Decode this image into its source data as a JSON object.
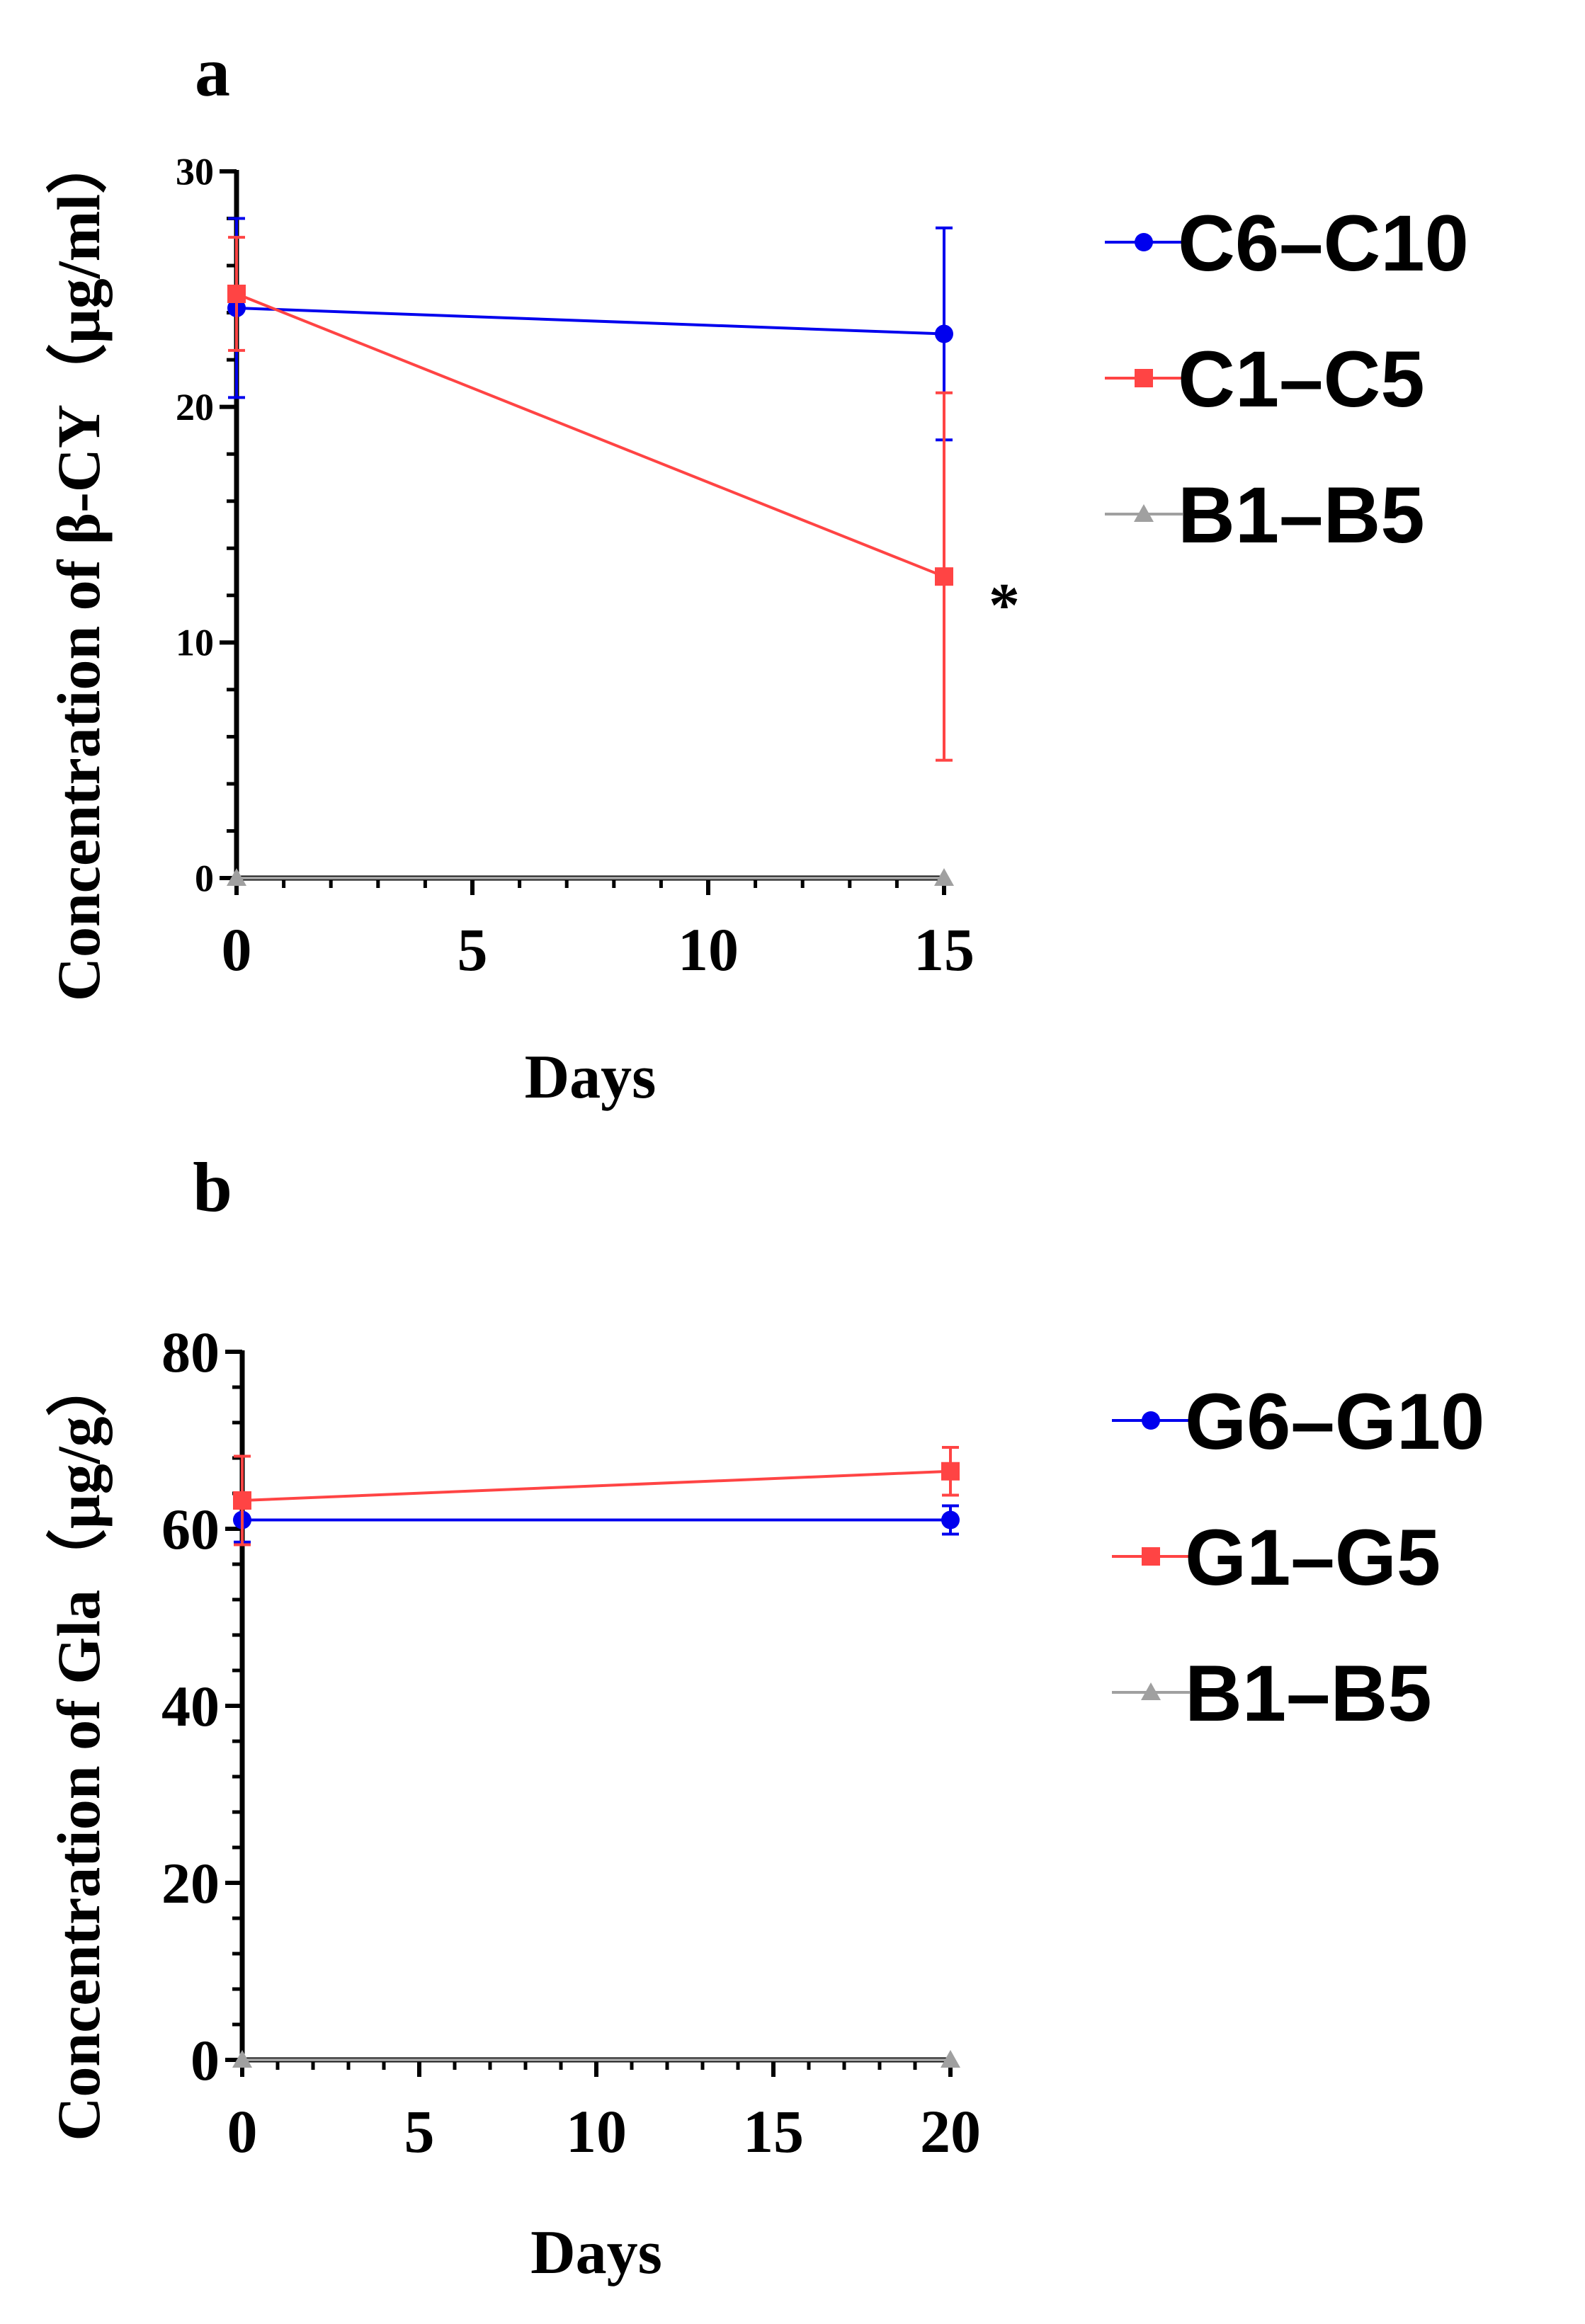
{
  "chart_data": [
    {
      "panel": "a",
      "type": "line",
      "xlabel": "Days",
      "ylabel": "Concentration of β-CY（μg/ml）",
      "xlim": [
        0,
        15
      ],
      "ylim": [
        0,
        30
      ],
      "xticks": [
        0,
        5,
        10,
        15
      ],
      "yticks": [
        0,
        10,
        20,
        30
      ],
      "x": [
        0,
        15
      ],
      "series": [
        {
          "name": "C6–C10",
          "color": "#0000ee",
          "marker": "circle",
          "values": [
            24.2,
            23.1
          ],
          "errors": [
            3.8,
            4.5
          ]
        },
        {
          "name": "C1–C5",
          "color": "#ff4444",
          "marker": "square",
          "values": [
            24.8,
            12.8
          ],
          "errors": [
            2.4,
            7.8
          ]
        },
        {
          "name": "B1–B5",
          "color": "#a0a0a0",
          "marker": "triangle",
          "values": [
            0,
            0
          ],
          "errors": [
            0,
            0
          ]
        }
      ],
      "annotation": {
        "text": "*",
        "x": 15,
        "y": 12.8
      }
    },
    {
      "panel": "b",
      "type": "line",
      "xlabel": "Days",
      "ylabel": "Concentration of Gla（μg/g）",
      "xlim": [
        0,
        20
      ],
      "ylim": [
        0,
        80
      ],
      "xticks": [
        0,
        5,
        10,
        15,
        20
      ],
      "yticks": [
        0,
        20,
        40,
        60,
        80
      ],
      "x": [
        0,
        20
      ],
      "series": [
        {
          "name": "G6–G10",
          "color": "#0000ee",
          "marker": "circle",
          "values": [
            61.0,
            61.0
          ],
          "errors": [
            2.5,
            1.6
          ]
        },
        {
          "name": "G1–G5",
          "color": "#ff4444",
          "marker": "square",
          "values": [
            63.2,
            66.5
          ],
          "errors": [
            5.0,
            2.7
          ]
        },
        {
          "name": "B1–B5",
          "color": "#a0a0a0",
          "marker": "triangle",
          "values": [
            0,
            0
          ],
          "errors": [
            0,
            0
          ]
        }
      ]
    }
  ]
}
